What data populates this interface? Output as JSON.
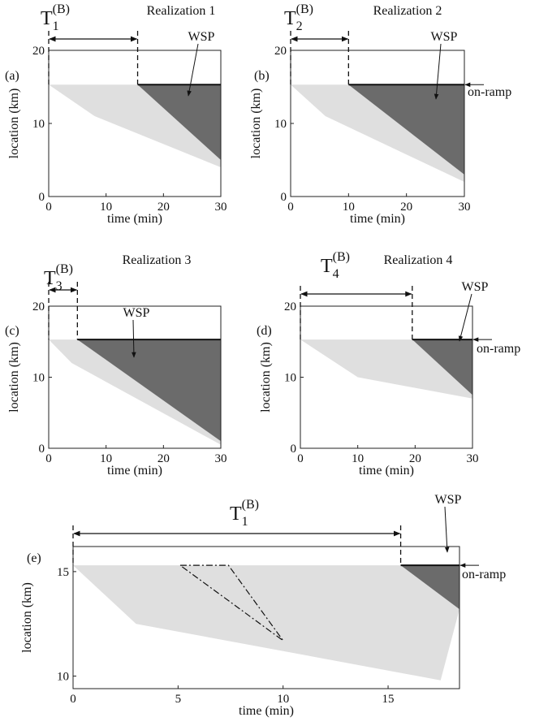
{
  "chart_data": [
    {
      "type": "spacetime",
      "panel_label": "(a)",
      "title": "Realization 1",
      "xlabel": "time (min)",
      "ylabel": "location (km)",
      "xlim": [
        0,
        30
      ],
      "ylim": [
        0,
        20
      ],
      "xticks": [
        0,
        10,
        20,
        30
      ],
      "yticks": [
        0,
        10,
        20
      ],
      "breakdown_label": {
        "symbol": "T",
        "subscript": "1",
        "superscript": "(B)"
      },
      "breakdown_time": 15.5,
      "onramp_km": 15.3,
      "series": [
        {
          "name": "WSP",
          "color": "#3a3a3a",
          "x": [
            15.5,
            30,
            30
          ],
          "y": [
            15.3,
            15.3,
            5
          ]
        }
      ],
      "light_region": {
        "x": [
          0,
          15.5,
          30,
          30,
          8
        ],
        "y": [
          15.3,
          15.3,
          5,
          4,
          11
        ]
      }
    },
    {
      "type": "spacetime",
      "panel_label": "(b)",
      "title": "Realization 2",
      "xlabel": "time (min)",
      "ylabel": "location (km)",
      "xlim": [
        0,
        30
      ],
      "ylim": [
        0,
        20
      ],
      "xticks": [
        0,
        10,
        20,
        30
      ],
      "yticks": [
        0,
        10,
        20
      ],
      "breakdown_label": {
        "symbol": "T",
        "subscript": "2",
        "superscript": "(B)"
      },
      "breakdown_time": 10,
      "onramp_km": 15.3,
      "onramp_label": "on-ramp",
      "series": [
        {
          "name": "WSP",
          "color": "#3a3a3a",
          "x": [
            10,
            30,
            30
          ],
          "y": [
            15.3,
            15.3,
            3
          ]
        }
      ],
      "light_region": {
        "x": [
          0,
          10,
          30,
          30,
          6
        ],
        "y": [
          15.3,
          15.3,
          3,
          2,
          11
        ]
      }
    },
    {
      "type": "spacetime",
      "panel_label": "(c)",
      "title": "Realization 3",
      "xlabel": "time (min)",
      "ylabel": "location (km)",
      "xlim": [
        0,
        30
      ],
      "ylim": [
        0,
        20
      ],
      "xticks": [
        0,
        10,
        20,
        30
      ],
      "yticks": [
        0,
        10,
        20
      ],
      "breakdown_label": {
        "symbol": "T",
        "subscript": "3",
        "superscript": "(B)"
      },
      "breakdown_time": 5,
      "onramp_km": 15.3,
      "series": [
        {
          "name": "WSP",
          "color": "#3a3a3a",
          "x": [
            5,
            30,
            30
          ],
          "y": [
            15.3,
            15.3,
            1
          ]
        }
      ],
      "light_region": {
        "x": [
          0,
          5,
          30,
          30,
          4
        ],
        "y": [
          15.3,
          15.3,
          1,
          0.5,
          12
        ]
      }
    },
    {
      "type": "spacetime",
      "panel_label": "(d)",
      "title": "Realization 4",
      "xlabel": "time (min)",
      "ylabel": "location (km)",
      "xlim": [
        0,
        30
      ],
      "ylim": [
        0,
        20
      ],
      "xticks": [
        0,
        10,
        20,
        30
      ],
      "yticks": [
        0,
        10,
        20
      ],
      "breakdown_label": {
        "symbol": "T",
        "subscript": "4",
        "superscript": "(B)"
      },
      "breakdown_time": 19.5,
      "onramp_km": 15.3,
      "onramp_label": "on-ramp",
      "series": [
        {
          "name": "WSP",
          "color": "#3a3a3a",
          "x": [
            19.5,
            30,
            30
          ],
          "y": [
            15.3,
            15.3,
            7.5
          ]
        }
      ],
      "light_region": {
        "x": [
          0,
          19.5,
          30,
          30,
          10
        ],
        "y": [
          15.3,
          15.3,
          7.5,
          7,
          10
        ]
      }
    },
    {
      "type": "spacetime",
      "panel_label": "(e)",
      "xlabel": "time (min)",
      "ylabel": "location (km)",
      "xlim": [
        0,
        18.4
      ],
      "ylim": [
        9.4,
        16.2
      ],
      "xticks": [
        0,
        5,
        10,
        15
      ],
      "yticks": [
        10,
        15
      ],
      "breakdown_label": {
        "symbol": "T",
        "subscript": "1",
        "superscript": "(B)"
      },
      "breakdown_time": 15.6,
      "onramp_km": 15.3,
      "onramp_label": "on-ramp",
      "series": [
        {
          "name": "WSP",
          "color": "#3a3a3a",
          "x": [
            15.6,
            18.4,
            18.4
          ],
          "y": [
            15.3,
            15.3,
            13.2
          ]
        }
      ],
      "light_region": {
        "x": [
          0,
          15.6,
          18.4,
          17.5,
          3
        ],
        "y": [
          15.3,
          15.3,
          13.2,
          9.8,
          12.5
        ]
      },
      "outline": {
        "x": [
          5.1,
          7.4,
          10
        ],
        "y": [
          15.3,
          15.3,
          11.7
        ]
      }
    }
  ]
}
